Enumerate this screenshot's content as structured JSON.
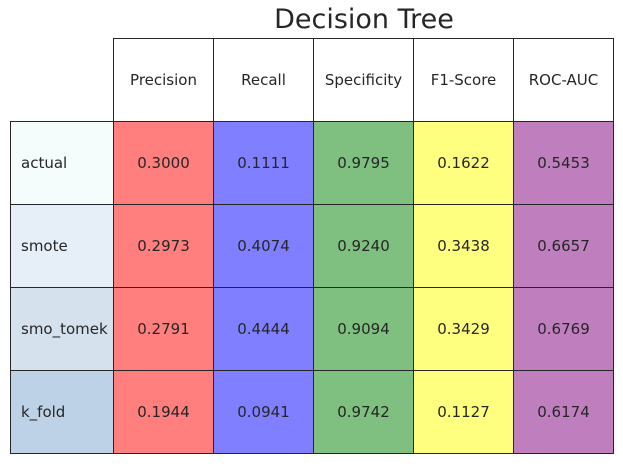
{
  "chart_data": {
    "type": "table",
    "title": "Decision Tree",
    "columns": [
      "Precision",
      "Recall",
      "Specificity",
      "F1-Score",
      "ROC-AUC"
    ],
    "column_colors": [
      "#ff7f7f",
      "#7f7fff",
      "#7fbf7f",
      "#ffff7f",
      "#bf7fbf"
    ],
    "rows": [
      {
        "label": "actual",
        "label_color": "#f5fcfc",
        "values": [
          "0.3000",
          "0.1111",
          "0.9795",
          "0.1622",
          "0.5453"
        ]
      },
      {
        "label": "smote",
        "label_color": "#e6eef7",
        "values": [
          "0.2973",
          "0.4074",
          "0.9240",
          "0.3438",
          "0.6657"
        ]
      },
      {
        "label": "smo_tomek",
        "label_color": "#d5e2ed",
        "values": [
          "0.2791",
          "0.4444",
          "0.9094",
          "0.3429",
          "0.6769"
        ]
      },
      {
        "label": "k_fold",
        "label_color": "#bdd2e6",
        "values": [
          "0.1944",
          "0.0941",
          "0.9742",
          "0.1127",
          "0.6174"
        ]
      }
    ]
  }
}
